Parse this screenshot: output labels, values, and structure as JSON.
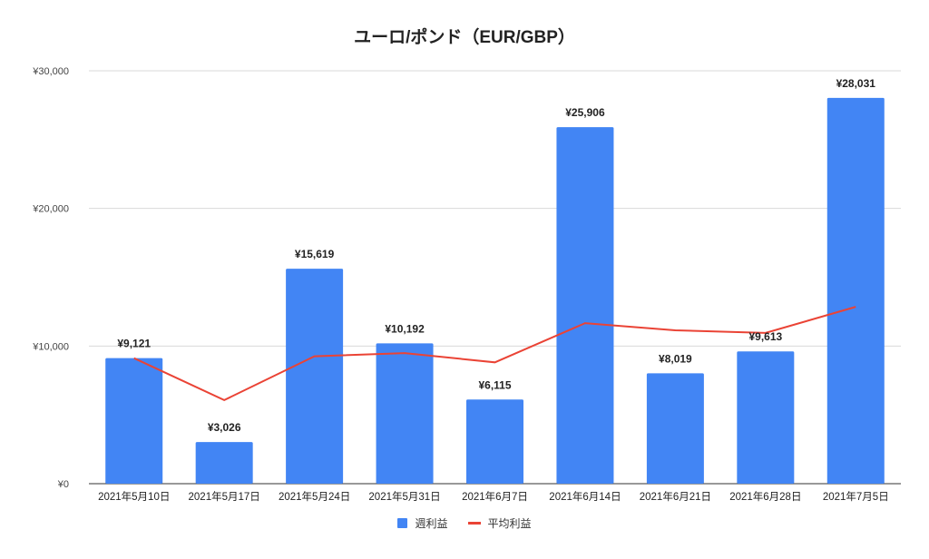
{
  "chart_data": {
    "type": "bar",
    "title": "ユーロ/ポンド（EUR/GBP）",
    "xlabel": "",
    "ylabel": "",
    "ylim": [
      0,
      30000
    ],
    "yticks": [
      0,
      10000,
      20000,
      30000
    ],
    "ytick_labels": [
      "¥0",
      "¥10,000",
      "¥20,000",
      "¥30,000"
    ],
    "grid": true,
    "legend_position": "bottom",
    "categories": [
      "2021年5月10日",
      "2021年5月17日",
      "2021年5月24日",
      "2021年5月31日",
      "2021年6月7日",
      "2021年6月14日",
      "2021年6月21日",
      "2021年6月28日",
      "2021年7月5日"
    ],
    "series": [
      {
        "name": "週利益",
        "type": "bar",
        "color": "#4285f4",
        "values": [
          9121,
          3026,
          15619,
          10192,
          6115,
          25906,
          8019,
          9613,
          28031
        ],
        "data_labels": [
          "¥9,121",
          "¥3,026",
          "¥15,619",
          "¥10,192",
          "¥6,115",
          "¥25,906",
          "¥8,019",
          "¥9,613",
          "¥28,031"
        ]
      },
      {
        "name": "平均利益",
        "type": "line",
        "color": "#ea4335",
        "values": [
          9121,
          6074,
          9255,
          9490,
          8815,
          11664,
          11143,
          10953,
          12850
        ]
      }
    ]
  },
  "legend": {
    "items": [
      {
        "label": "週利益",
        "icon": "bar-swatch",
        "color": "#4285f4"
      },
      {
        "label": "平均利益",
        "icon": "line-swatch",
        "color": "#ea4335"
      }
    ]
  }
}
